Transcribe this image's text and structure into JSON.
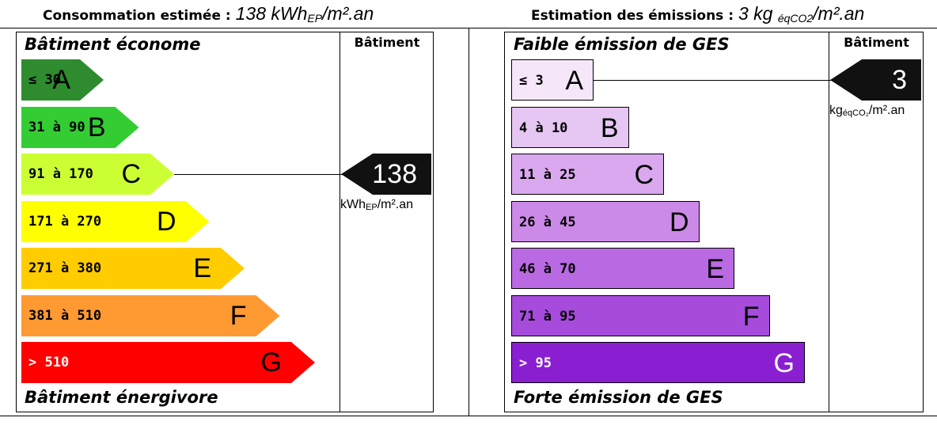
{
  "energy": {
    "heading_label": "Consommation estimée : ",
    "heading_value": "138 kWh",
    "heading_sub": "EP",
    "heading_tail": "/m².an",
    "column_header": "Bâtiment",
    "top_label": "Bâtiment économe",
    "bottom_label": "Bâtiment énergivore",
    "classes": [
      {
        "range": "≤ 30",
        "letter": "A",
        "color": "#2e8b2e"
      },
      {
        "range": "31 à 90",
        "letter": "B",
        "color": "#33cc33"
      },
      {
        "range": "91 à 170",
        "letter": "C",
        "color": "#ccff33"
      },
      {
        "range": "171 à 270",
        "letter": "D",
        "color": "#ffff00"
      },
      {
        "range": "271 à 380",
        "letter": "E",
        "color": "#ffcc00"
      },
      {
        "range": "381 à 510",
        "letter": "F",
        "color": "#ff9a33"
      },
      {
        "range": "> 510",
        "letter": "G",
        "color": "#ff0000"
      }
    ],
    "marker_value": "138",
    "marker_class": "C",
    "unit_main": "kWh",
    "unit_sub": "EP",
    "unit_tail": "/m².an"
  },
  "ges": {
    "heading_label": "Estimation des émissions : ",
    "heading_value": "3 kg ",
    "heading_sub": "éqCO2",
    "heading_tail": "/m².an",
    "column_header": "Bâtiment",
    "top_label": "Faible émission de GES",
    "bottom_label": "Forte émission de GES",
    "classes": [
      {
        "range": "≤ 3",
        "letter": "A",
        "color": "#f5e6fa"
      },
      {
        "range": "4 à 10",
        "letter": "B",
        "color": "#e6c6f3"
      },
      {
        "range": "11 à 25",
        "letter": "C",
        "color": "#d9a8ee"
      },
      {
        "range": "26 à 45",
        "letter": "D",
        "color": "#cc8ae8"
      },
      {
        "range": "46 à 70",
        "letter": "E",
        "color": "#b96ae3"
      },
      {
        "range": "71 à 95",
        "letter": "F",
        "color": "#a64bdc"
      },
      {
        "range": "> 95",
        "letter": "G",
        "color": "#8a1fd1"
      }
    ],
    "marker_value": "3",
    "marker_class": "A",
    "unit_main": "kg",
    "unit_sub": "éqCO₂",
    "unit_tail": "/m².an"
  }
}
